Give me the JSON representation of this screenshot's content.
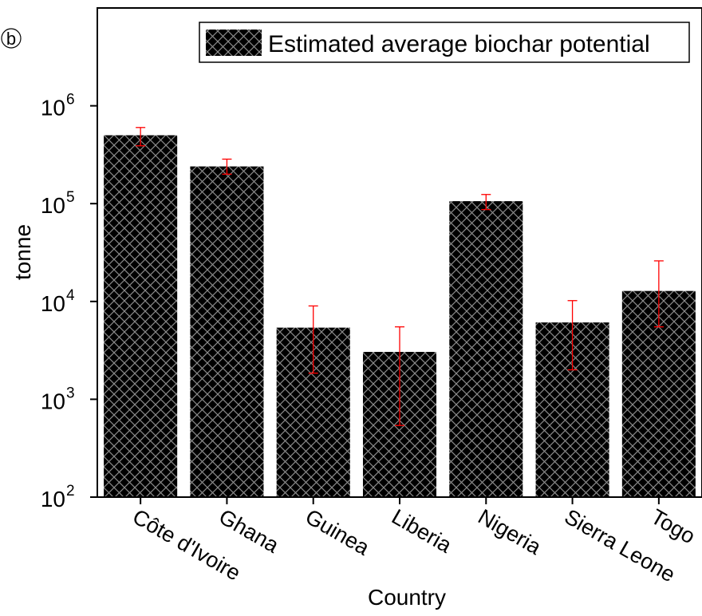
{
  "panel_label": "b",
  "chart_data": {
    "type": "bar",
    "title": "",
    "xlabel": "Country",
    "ylabel": "tonne",
    "yscale": "log",
    "ylim": [
      100,
      10000000
    ],
    "grid": false,
    "legend_position": "top-right",
    "categories": [
      "Côte d'Ivoire",
      "Ghana",
      "Guinea",
      "Liberia",
      "Nigeria",
      "Sierra Leone",
      "Togo"
    ],
    "series": [
      {
        "name": "Estimated average biochar potential",
        "values": [
          500000,
          240000,
          5400,
          3050,
          106000,
          6100,
          12800
        ],
        "error_upper": [
          600000,
          285000,
          9000,
          5500,
          124000,
          10200,
          26000
        ],
        "error_lower": [
          390000,
          200000,
          1850,
          540,
          87000,
          2000,
          5500
        ]
      }
    ],
    "y_ticks": [
      {
        "value": 100,
        "base": "10",
        "exp": "2"
      },
      {
        "value": 1000,
        "base": "10",
        "exp": "3"
      },
      {
        "value": 10000,
        "base": "10",
        "exp": "4"
      },
      {
        "value": 100000,
        "base": "10",
        "exp": "5"
      },
      {
        "value": 1000000,
        "base": "10",
        "exp": "6"
      }
    ],
    "colors": {
      "bar": "#000000",
      "hatch": "#8a8a8a",
      "error": "#ff0000",
      "axis": "#000000"
    }
  }
}
